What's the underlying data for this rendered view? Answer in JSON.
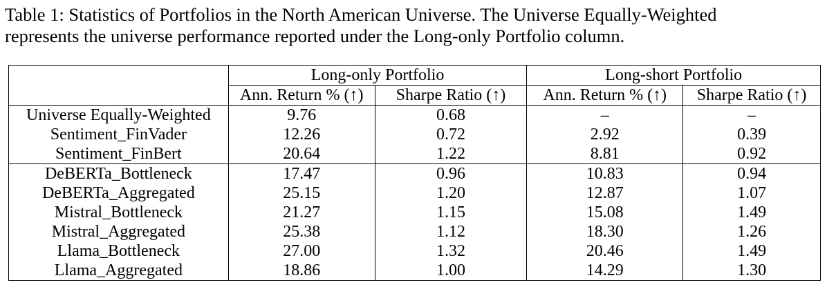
{
  "caption": {
    "line1": "Table 1: Statistics of Portfolios in the North American Universe. The Universe Equally-Weighted",
    "line2": "represents the universe performance reported under the Long-only Portfolio column."
  },
  "table": {
    "group_headers": [
      "Long-only Portfolio",
      "Long-short Portfolio"
    ],
    "sub_headers": [
      "Ann. Return % (↑)",
      "Sharpe Ratio (↑)",
      "Ann. Return % (↑)",
      "Sharpe Ratio (↑)"
    ],
    "rows": [
      {
        "name": "Universe Equally-Weighted",
        "lo_ret": "9.76",
        "lo_sharpe": "0.68",
        "ls_ret": "–",
        "ls_sharpe": "–"
      },
      {
        "name": "Sentiment_FinVader",
        "lo_ret": "12.26",
        "lo_sharpe": "0.72",
        "ls_ret": "2.92",
        "ls_sharpe": "0.39"
      },
      {
        "name": "Sentiment_FinBert",
        "lo_ret": "20.64",
        "lo_sharpe": "1.22",
        "ls_ret": "8.81",
        "ls_sharpe": "0.92"
      },
      {
        "name": "DeBERTa_Bottleneck",
        "lo_ret": "17.47",
        "lo_sharpe": "0.96",
        "ls_ret": "10.83",
        "ls_sharpe": "0.94"
      },
      {
        "name": "DeBERTa_Aggregated",
        "lo_ret": "25.15",
        "lo_sharpe": "1.20",
        "ls_ret": "12.87",
        "ls_sharpe": "1.07"
      },
      {
        "name": "Mistral_Bottleneck",
        "lo_ret": "21.27",
        "lo_sharpe": "1.15",
        "ls_ret": "15.08",
        "ls_sharpe": "1.49"
      },
      {
        "name": "Mistral_Aggregated",
        "lo_ret": "25.38",
        "lo_sharpe": "1.12",
        "ls_ret": "18.30",
        "ls_sharpe": "1.26"
      },
      {
        "name": "Llama_Bottleneck",
        "lo_ret": "27.00",
        "lo_sharpe": "1.32",
        "ls_ret": "20.46",
        "ls_sharpe": "1.49"
      },
      {
        "name": "Llama_Aggregated",
        "lo_ret": "18.86",
        "lo_sharpe": "1.00",
        "ls_ret": "14.29",
        "ls_sharpe": "1.30"
      }
    ]
  }
}
